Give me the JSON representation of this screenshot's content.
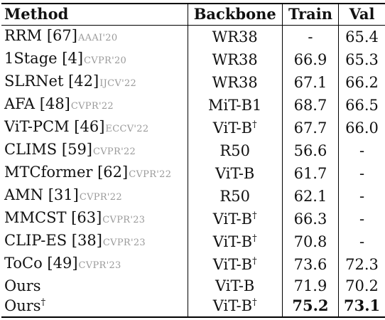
{
  "headers": {
    "method": "Method",
    "backbone": "Backbone",
    "train": "Train",
    "val": "Val"
  },
  "rows": [
    {
      "method": "RRM",
      "ref": "[67]",
      "venue": "AAAI'20",
      "backbone": "WR38",
      "backbone_sup": "",
      "train": "-",
      "val": "65.4"
    },
    {
      "method": "1Stage",
      "ref": "[4]",
      "venue": "CVPR'20",
      "backbone": "WR38",
      "backbone_sup": "",
      "train": "66.9",
      "val": "65.3"
    },
    {
      "method": "SLRNet",
      "ref": "[42]",
      "venue": "IJCV'22",
      "backbone": "WR38",
      "backbone_sup": "",
      "train": "67.1",
      "val": "66.2"
    },
    {
      "method": "AFA",
      "ref": "[48]",
      "venue": "CVPR'22",
      "backbone": "MiT-B1",
      "backbone_sup": "",
      "train": "68.7",
      "val": "66.5"
    },
    {
      "method": "ViT-PCM",
      "ref": "[46]",
      "venue": "ECCV'22",
      "backbone": "ViT-B",
      "backbone_sup": "†",
      "train": "67.7",
      "val": "66.0"
    },
    {
      "method": "CLIMS",
      "ref": "[59]",
      "venue": "CVPR'22",
      "backbone": "R50",
      "backbone_sup": "",
      "train": "56.6",
      "val": "-"
    },
    {
      "method": "MTCformer",
      "ref": "[62]",
      "venue": "CVPR'22",
      "backbone": "ViT-B",
      "backbone_sup": "",
      "train": "61.7",
      "val": "-"
    },
    {
      "method": "AMN",
      "ref": "[31]",
      "venue": "CVPR'22",
      "backbone": "R50",
      "backbone_sup": "",
      "train": "62.1",
      "val": "-"
    },
    {
      "method": "MMCST",
      "ref": "[63]",
      "venue": "CVPR'23",
      "backbone": "ViT-B",
      "backbone_sup": "†",
      "train": "66.3",
      "val": "-"
    },
    {
      "method": "CLIP-ES",
      "ref": "[38]",
      "venue": "CVPR'23",
      "backbone": "ViT-B",
      "backbone_sup": "†",
      "train": "70.8",
      "val": "-"
    },
    {
      "method": "ToCo",
      "ref": "[49]",
      "venue": "CVPR'23",
      "backbone": "ViT-B",
      "backbone_sup": "†",
      "train": "73.6",
      "val": "72.3"
    },
    {
      "method": "Ours",
      "ref": "",
      "venue": "",
      "backbone": "ViT-B",
      "backbone_sup": "",
      "train": "71.9",
      "val": "70.2"
    },
    {
      "method": "Ours",
      "method_sup": "†",
      "ref": "",
      "venue": "",
      "backbone": "ViT-B",
      "backbone_sup": "†",
      "train": "75.2",
      "val": "73.1",
      "bold_scores": true
    }
  ]
}
